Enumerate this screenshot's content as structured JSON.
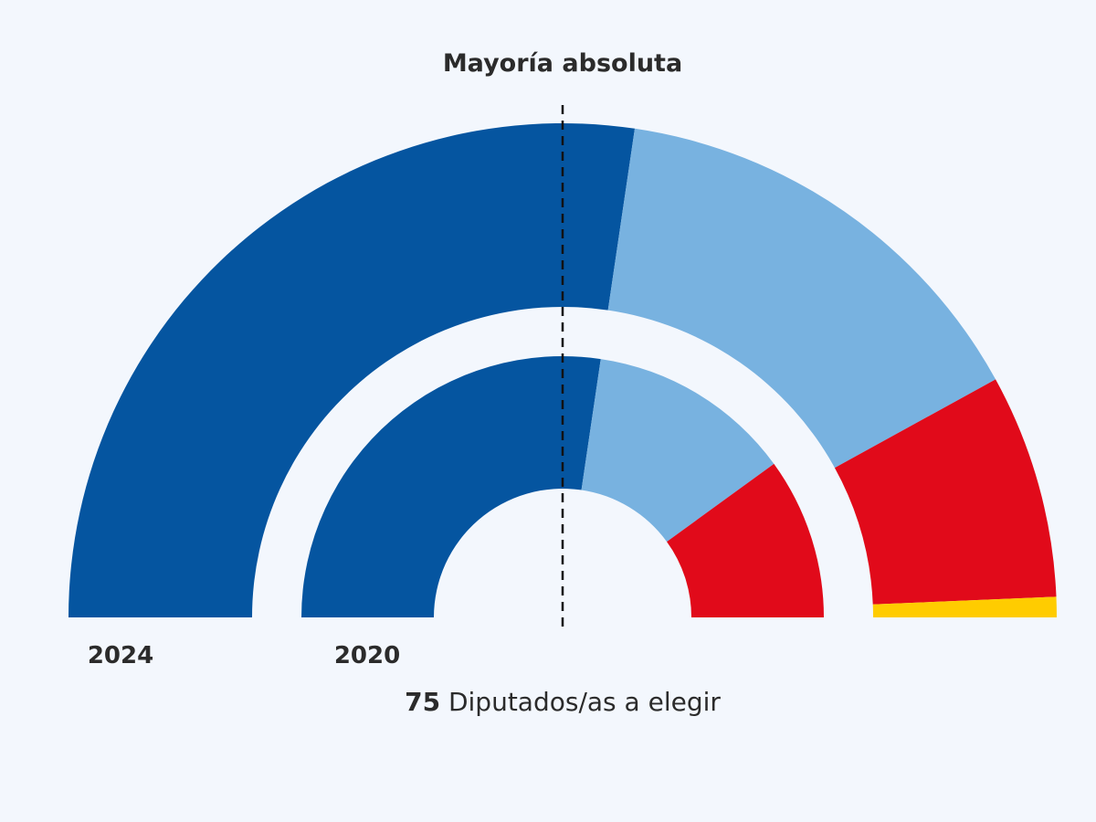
{
  "chart_data": {
    "type": "hemicycle",
    "title": "Mayoría absoluta",
    "total_seats": 75,
    "seats_label": "Diputados/as a elegir",
    "majority": 38,
    "parties": [
      {
        "key": "blue_dark",
        "color": "#0555a0"
      },
      {
        "key": "blue_light",
        "color": "#78b2e0"
      },
      {
        "key": "red",
        "color": "#e10a1a"
      },
      {
        "key": "yellow",
        "color": "#ffcc00"
      }
    ],
    "rings": [
      {
        "label": "2024",
        "position": "outer",
        "seats": [
          41,
          22,
          11,
          1
        ]
      },
      {
        "label": "2020",
        "position": "inner",
        "seats": [
          41,
          19,
          15,
          0
        ]
      }
    ]
  }
}
